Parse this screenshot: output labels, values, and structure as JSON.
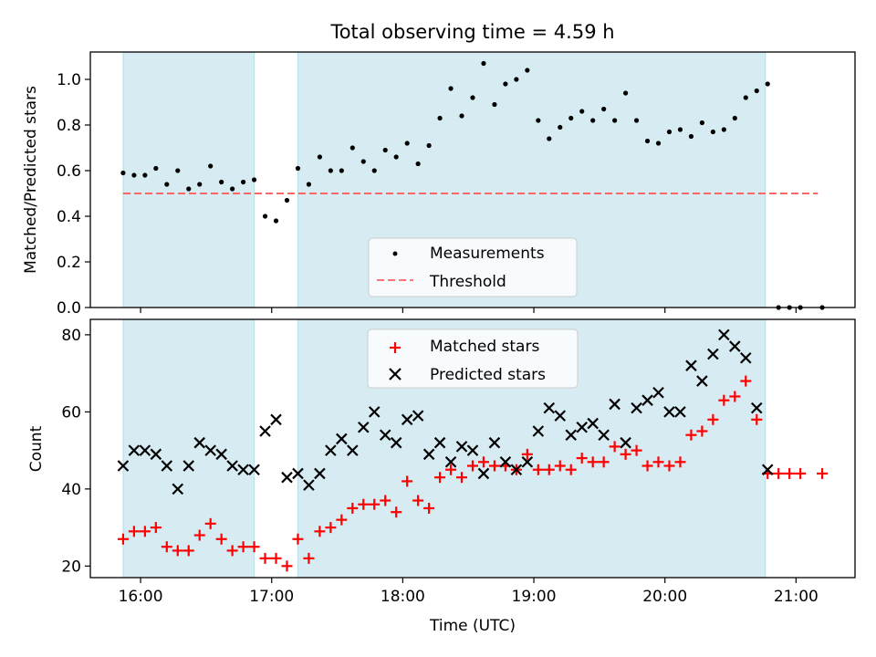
{
  "title": "Total observing time = 4.59 h",
  "colors": {
    "shade": "#add8e6",
    "threshold": "#ff6666",
    "measurements": "#000000",
    "matched": "#ff0000",
    "predicted": "#000000"
  },
  "chart_data": [
    {
      "type": "scatter",
      "ylabel": "Matched/Predicted stars",
      "ylim": [
        0,
        1.12
      ],
      "yticks": [
        0.0,
        0.2,
        0.4,
        0.6,
        0.8,
        1.0
      ],
      "ytick_labels": [
        "0.0",
        "0.2",
        "0.4",
        "0.6",
        "0.8",
        "1.0"
      ],
      "xlim": [
        "15:37",
        "21:27"
      ],
      "shaded_intervals": [
        [
          "15:52",
          "16:52"
        ],
        [
          "17:12",
          "20:46"
        ]
      ],
      "legend": {
        "placement": "lower-center",
        "entries": [
          "Measurements",
          "Threshold"
        ]
      },
      "threshold": {
        "name": "Threshold",
        "value": 0.5,
        "x": [
          "15:52",
          "21:10"
        ]
      },
      "series": [
        {
          "name": "Measurements",
          "marker": "dot",
          "x": [
            "15:52",
            "15:57",
            "16:02",
            "16:07",
            "16:12",
            "16:17",
            "16:22",
            "16:27",
            "16:32",
            "16:37",
            "16:42",
            "16:47",
            "16:52",
            "16:57",
            "17:02",
            "17:07",
            "17:12",
            "17:17",
            "17:22",
            "17:27",
            "17:32",
            "17:37",
            "17:42",
            "17:47",
            "17:52",
            "17:57",
            "18:02",
            "18:07",
            "18:12",
            "18:17",
            "18:22",
            "18:27",
            "18:32",
            "18:37",
            "18:42",
            "18:47",
            "18:52",
            "18:57",
            "19:02",
            "19:07",
            "19:12",
            "19:17",
            "19:22",
            "19:27",
            "19:32",
            "19:37",
            "19:42",
            "19:47",
            "19:52",
            "19:57",
            "20:02",
            "20:07",
            "20:12",
            "20:17",
            "20:22",
            "20:27",
            "20:32",
            "20:37",
            "20:42",
            "20:47",
            "20:52",
            "20:57",
            "21:02",
            "21:12"
          ],
          "y": [
            0.59,
            0.58,
            0.58,
            0.61,
            0.54,
            0.6,
            0.52,
            0.54,
            0.62,
            0.55,
            0.52,
            0.55,
            0.56,
            0.4,
            0.38,
            0.47,
            0.61,
            0.54,
            0.66,
            0.6,
            0.6,
            0.7,
            0.64,
            0.6,
            0.69,
            0.66,
            0.72,
            0.63,
            0.71,
            0.83,
            0.96,
            0.84,
            0.92,
            1.07,
            0.89,
            0.98,
            1.0,
            1.04,
            0.82,
            0.74,
            0.79,
            0.83,
            0.86,
            0.82,
            0.87,
            0.82,
            0.94,
            0.82,
            0.73,
            0.72,
            0.77,
            0.78,
            0.75,
            0.81,
            0.77,
            0.78,
            0.83,
            0.92,
            0.95,
            0.98,
            0.0,
            0.0,
            0.0,
            0.0
          ]
        }
      ]
    },
    {
      "type": "scatter",
      "xlabel": "Time (UTC)",
      "ylabel": "Count",
      "ylim": [
        17,
        84
      ],
      "yticks": [
        20,
        40,
        60,
        80
      ],
      "ytick_labels": [
        "20",
        "40",
        "60",
        "80"
      ],
      "xlim": [
        "15:37",
        "21:27"
      ],
      "xticks": [
        "16:00",
        "17:00",
        "18:00",
        "19:00",
        "20:00",
        "21:00"
      ],
      "xtick_labels": [
        "16:00",
        "17:00",
        "18:00",
        "19:00",
        "20:00",
        "21:00"
      ],
      "shaded_intervals": [
        [
          "15:52",
          "16:52"
        ],
        [
          "17:12",
          "20:46"
        ]
      ],
      "legend": {
        "placement": "upper-center",
        "entries": [
          "Matched stars",
          "Predicted stars"
        ]
      },
      "series": [
        {
          "name": "Matched stars",
          "marker": "plus",
          "x": [
            "15:52",
            "15:57",
            "16:02",
            "16:07",
            "16:12",
            "16:17",
            "16:22",
            "16:27",
            "16:32",
            "16:37",
            "16:42",
            "16:47",
            "16:52",
            "16:57",
            "17:02",
            "17:07",
            "17:12",
            "17:17",
            "17:22",
            "17:27",
            "17:32",
            "17:37",
            "17:42",
            "17:47",
            "17:52",
            "17:57",
            "18:02",
            "18:07",
            "18:12",
            "18:17",
            "18:22",
            "18:27",
            "18:32",
            "18:37",
            "18:42",
            "18:47",
            "18:52",
            "18:57",
            "19:02",
            "19:07",
            "19:12",
            "19:17",
            "19:22",
            "19:27",
            "19:32",
            "19:37",
            "19:42",
            "19:47",
            "19:52",
            "19:57",
            "20:02",
            "20:07",
            "20:12",
            "20:17",
            "20:22",
            "20:27",
            "20:32",
            "20:37",
            "20:42",
            "20:47",
            "20:52",
            "20:57",
            "21:02",
            "21:12"
          ],
          "y": [
            27,
            29,
            29,
            30,
            25,
            24,
            24,
            28,
            31,
            27,
            24,
            25,
            25,
            22,
            22,
            20,
            27,
            22,
            29,
            30,
            32,
            35,
            36,
            36,
            37,
            34,
            42,
            37,
            35,
            43,
            45,
            43,
            46,
            47,
            46,
            46,
            45,
            49,
            45,
            45,
            46,
            45,
            48,
            47,
            47,
            51,
            49,
            50,
            46,
            47,
            46,
            47,
            54,
            55,
            58,
            63,
            64,
            68,
            58,
            44,
            44,
            44,
            44,
            44
          ]
        },
        {
          "name": "Predicted stars",
          "marker": "x",
          "x": [
            "15:52",
            "15:57",
            "16:02",
            "16:07",
            "16:12",
            "16:17",
            "16:22",
            "16:27",
            "16:32",
            "16:37",
            "16:42",
            "16:47",
            "16:52",
            "16:57",
            "17:02",
            "17:07",
            "17:12",
            "17:17",
            "17:22",
            "17:27",
            "17:32",
            "17:37",
            "17:42",
            "17:47",
            "17:52",
            "17:57",
            "18:02",
            "18:07",
            "18:12",
            "18:17",
            "18:22",
            "18:27",
            "18:32",
            "18:37",
            "18:42",
            "18:47",
            "18:52",
            "18:57",
            "19:02",
            "19:07",
            "19:12",
            "19:17",
            "19:22",
            "19:27",
            "19:32",
            "19:37",
            "19:42",
            "19:47",
            "19:52",
            "19:57",
            "20:02",
            "20:07",
            "20:12",
            "20:17",
            "20:22",
            "20:27",
            "20:32",
            "20:37",
            "20:42",
            "20:47"
          ],
          "y": [
            46,
            50,
            50,
            49,
            46,
            40,
            46,
            52,
            50,
            49,
            46,
            45,
            45,
            55,
            58,
            43,
            44,
            41,
            44,
            50,
            53,
            50,
            56,
            60,
            54,
            52,
            58,
            59,
            49,
            52,
            47,
            51,
            50,
            44,
            52,
            47,
            45,
            47,
            55,
            61,
            59,
            54,
            56,
            57,
            54,
            62,
            52,
            61,
            63,
            65,
            60,
            60,
            72,
            68,
            75,
            80,
            77,
            74,
            61,
            45
          ]
        }
      ]
    }
  ]
}
